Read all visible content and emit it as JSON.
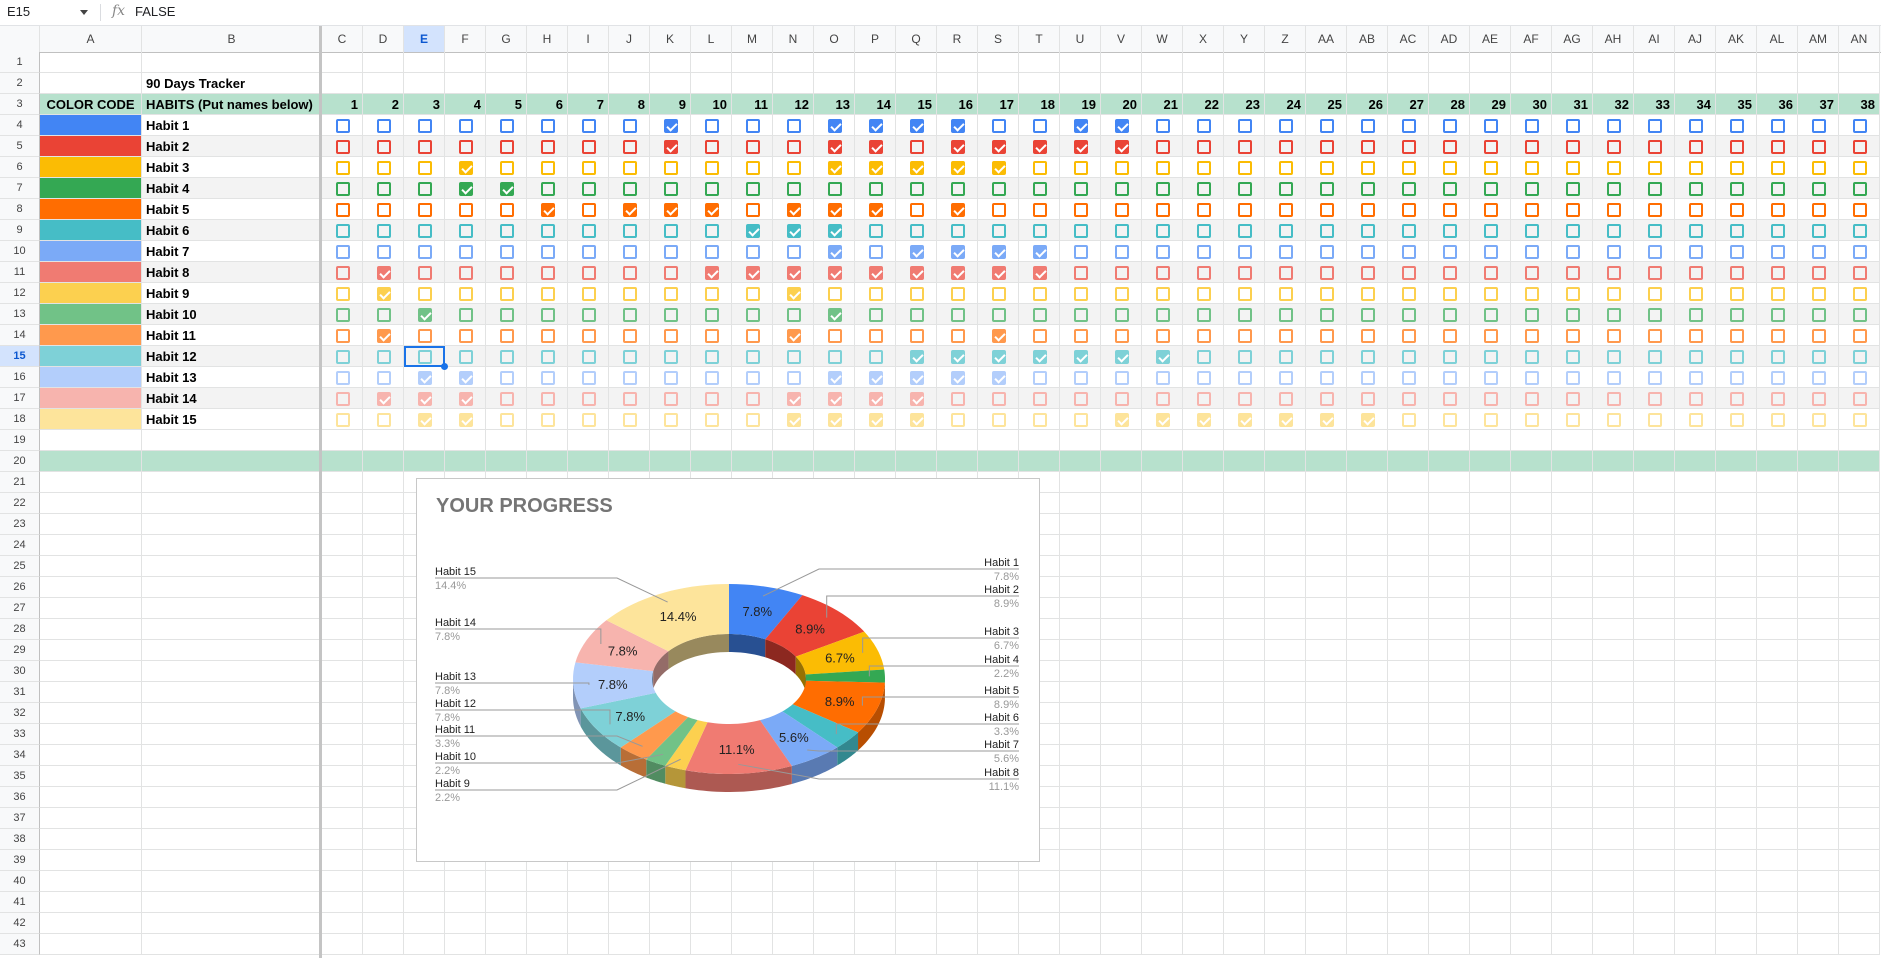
{
  "formula_bar": {
    "name_box": "E15",
    "fx": "fx",
    "value": "FALSE"
  },
  "columns": [
    "A",
    "B",
    "C",
    "D",
    "E",
    "F",
    "G",
    "H",
    "I",
    "J",
    "K",
    "L",
    "M",
    "N",
    "O",
    "P",
    "Q",
    "R",
    "S",
    "T",
    "U",
    "V",
    "W",
    "X",
    "Y",
    "Z",
    "AA",
    "AB",
    "AC",
    "AD",
    "AE",
    "AF",
    "AG",
    "AH",
    "AI",
    "AJ",
    "AK",
    "AL",
    "AM",
    "AN"
  ],
  "selected_col": "E",
  "selected_row": 15,
  "rows": [
    "1",
    "2",
    "3",
    "4",
    "5",
    "6",
    "7",
    "8",
    "9",
    "10",
    "11",
    "12",
    "13",
    "14",
    "15",
    "16",
    "17",
    "18",
    "19",
    "20",
    "21",
    "22",
    "23",
    "24",
    "25",
    "26",
    "27",
    "28",
    "29",
    "30",
    "31",
    "32",
    "33",
    "34",
    "35",
    "36",
    "37",
    "38",
    "39",
    "40",
    "41",
    "42",
    "43"
  ],
  "title": "90 Days Tracker",
  "header": {
    "color_code": "COLOR CODE",
    "habits": "HABITS (Put names below)"
  },
  "days": [
    "1",
    "2",
    "3",
    "4",
    "5",
    "6",
    "7",
    "8",
    "9",
    "10",
    "11",
    "12",
    "13",
    "14",
    "15",
    "16",
    "17",
    "18",
    "19",
    "20",
    "21",
    "22",
    "23",
    "24",
    "25",
    "26",
    "27",
    "28",
    "29",
    "30",
    "31",
    "32",
    "33",
    "34",
    "35",
    "36",
    "37",
    "38"
  ],
  "habits": [
    {
      "name": "Habit 1",
      "color": "#4285f4",
      "checked": [
        9,
        13,
        14,
        15,
        16,
        19,
        20
      ]
    },
    {
      "name": "Habit 2",
      "color": "#ea4335",
      "checked": [
        9,
        13,
        14,
        16,
        17,
        18,
        19,
        20
      ]
    },
    {
      "name": "Habit 3",
      "color": "#fbbc04",
      "checked": [
        4,
        13,
        14,
        15,
        16,
        17
      ]
    },
    {
      "name": "Habit 4",
      "color": "#34a853",
      "checked": [
        4,
        5
      ]
    },
    {
      "name": "Habit 5",
      "color": "#ff6d01",
      "checked": [
        6,
        8,
        9,
        10,
        12,
        13,
        14,
        16
      ]
    },
    {
      "name": "Habit 6",
      "color": "#46bdc6",
      "checked": [
        11,
        12,
        13
      ]
    },
    {
      "name": "Habit 7",
      "color": "#7baaf7",
      "checked": [
        13,
        15,
        16,
        17,
        18
      ]
    },
    {
      "name": "Habit 8",
      "color": "#f07b72",
      "checked": [
        2,
        10,
        11,
        12,
        13,
        14,
        15,
        16,
        17,
        18
      ]
    },
    {
      "name": "Habit 9",
      "color": "#fcd04f",
      "checked": [
        2,
        12
      ]
    },
    {
      "name": "Habit 10",
      "color": "#71c287",
      "checked": [
        3,
        13
      ]
    },
    {
      "name": "Habit 11",
      "color": "#ff994d",
      "checked": [
        2,
        12,
        17
      ]
    },
    {
      "name": "Habit 12",
      "color": "#7ed1d7",
      "checked": [
        15,
        16,
        17,
        18,
        19,
        20,
        21
      ]
    },
    {
      "name": "Habit 13",
      "color": "#b3cefb",
      "checked": [
        3,
        4,
        13,
        14,
        15,
        16,
        17
      ]
    },
    {
      "name": "Habit 14",
      "color": "#f7b4ae",
      "checked": [
        2,
        3,
        4,
        12,
        13,
        14,
        15
      ]
    },
    {
      "name": "Habit 15",
      "color": "#fde49b",
      "checked": [
        3,
        4,
        12,
        13,
        14,
        15,
        20,
        21,
        22,
        23,
        24,
        25,
        26
      ]
    }
  ],
  "chart": {
    "title": "YOUR PROGRESS",
    "chart_data": {
      "type": "pie",
      "donut": true,
      "title": "YOUR PROGRESS",
      "legend": "labeled",
      "slices": [
        {
          "label": "Habit 1",
          "value": 7.8,
          "color": "#4285f4"
        },
        {
          "label": "Habit 2",
          "value": 8.9,
          "color": "#ea4335"
        },
        {
          "label": "Habit 3",
          "value": 6.7,
          "color": "#fbbc04"
        },
        {
          "label": "Habit 4",
          "value": 2.2,
          "color": "#34a853"
        },
        {
          "label": "Habit 5",
          "value": 8.9,
          "color": "#ff6d01"
        },
        {
          "label": "Habit 6",
          "value": 3.3,
          "color": "#46bdc6"
        },
        {
          "label": "Habit 7",
          "value": 5.6,
          "color": "#7baaf7"
        },
        {
          "label": "Habit 8",
          "value": 11.1,
          "color": "#f07b72"
        },
        {
          "label": "Habit 9",
          "value": 2.2,
          "color": "#fcd04f"
        },
        {
          "label": "Habit 10",
          "value": 2.2,
          "color": "#71c287"
        },
        {
          "label": "Habit 11",
          "value": 3.3,
          "color": "#ff994d"
        },
        {
          "label": "Habit 12",
          "value": 7.8,
          "color": "#7ed1d7"
        },
        {
          "label": "Habit 13",
          "value": 7.8,
          "color": "#b3cefb"
        },
        {
          "label": "Habit 14",
          "value": 7.8,
          "color": "#f7b4ae"
        },
        {
          "label": "Habit 15",
          "value": 14.4,
          "color": "#fde49b"
        }
      ],
      "value_labels": [
        "7.8%",
        "8.9%",
        "6.7%",
        "2.2%",
        "8.9%",
        "3.3%",
        "5.6%",
        "11.1%",
        "2.2%",
        "2.2%",
        "3.3%",
        "7.8%",
        "7.8%",
        "7.8%",
        "14.4%"
      ]
    }
  },
  "band_color": "#b7e1cd",
  "header_row_color": "#b7e1cd"
}
